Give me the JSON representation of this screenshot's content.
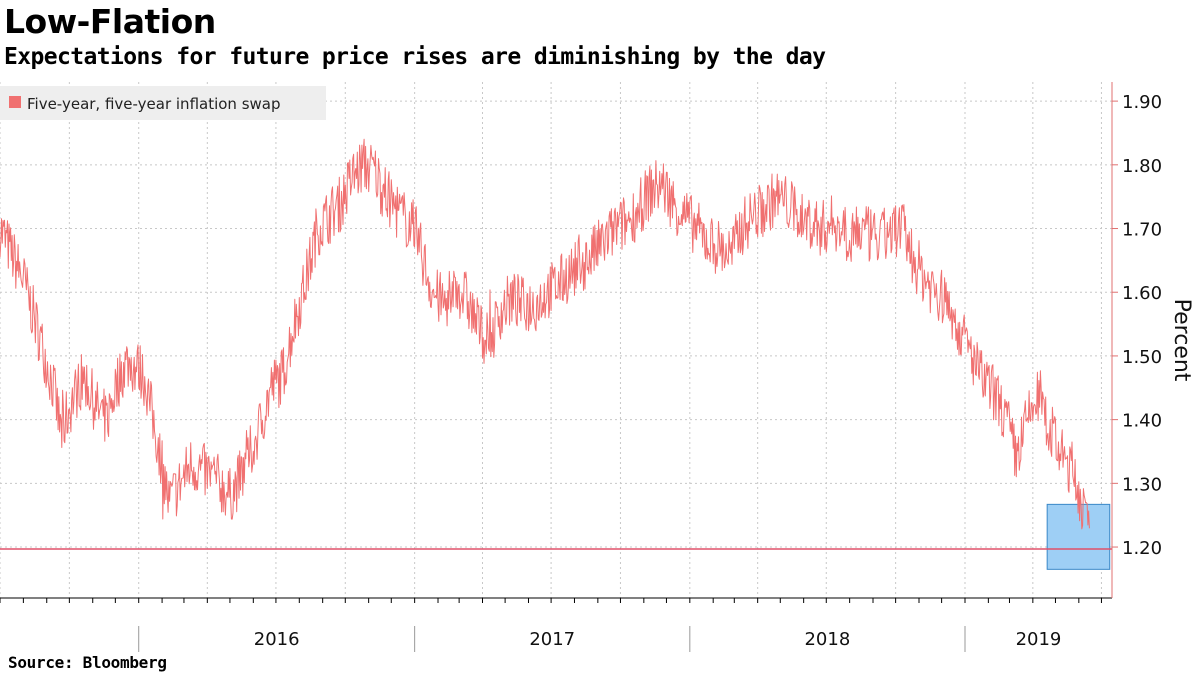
{
  "header": {
    "title": "Low-Flation",
    "subtitle": "Expectations for future price rises are diminishing by the day"
  },
  "footer": {
    "source": "Source: Bloomberg"
  },
  "colors": {
    "series": "#f07070",
    "threshold": "#e0506a",
    "highlight_fill": "#9ecff5",
    "highlight_stroke": "#3a88c8",
    "grid": "#c8c8c8",
    "axis": "#e07070"
  },
  "chart_data": {
    "type": "line",
    "title": "Low-Flation",
    "subtitle": "Expectations for future price rises are diminishing by the day",
    "ylabel": "Percent",
    "y_axis_side": "right",
    "ylim": [
      1.12,
      1.93
    ],
    "yticks": [
      "1.90",
      "1.80",
      "1.70",
      "1.60",
      "1.50",
      "1.40",
      "1.30",
      "1.20"
    ],
    "xlim": [
      "2015-07-01",
      "2019-07-15"
    ],
    "year_labels": [
      "2016",
      "2017",
      "2018",
      "2019"
    ],
    "grid": true,
    "legend": {
      "position": "top-left",
      "entries": [
        "Five-year, five-year inflation swap"
      ]
    },
    "series": [
      {
        "name": "Five-year, five-year inflation swap",
        "x": [
          "2015-07-01",
          "2015-08-01",
          "2015-08-25",
          "2015-09-10",
          "2015-09-20",
          "2015-10-05",
          "2015-10-20",
          "2015-11-05",
          "2015-11-20",
          "2015-12-01",
          "2015-12-15",
          "2016-01-01",
          "2016-01-10",
          "2016-01-20",
          "2016-02-01",
          "2016-02-10",
          "2016-02-25",
          "2016-03-10",
          "2016-03-25",
          "2016-04-10",
          "2016-05-01",
          "2016-05-20",
          "2016-06-10",
          "2016-06-25",
          "2016-07-10",
          "2016-07-25",
          "2016-08-10",
          "2016-08-25",
          "2016-09-10",
          "2016-09-25",
          "2016-10-10",
          "2016-10-25",
          "2016-11-09",
          "2016-11-20",
          "2016-12-01",
          "2016-12-15",
          "2017-01-01",
          "2017-01-15",
          "2017-01-25",
          "2017-02-10",
          "2017-02-25",
          "2017-03-10",
          "2017-03-25",
          "2017-04-10",
          "2017-04-25",
          "2017-05-10",
          "2017-05-25",
          "2017-06-10",
          "2017-06-25",
          "2017-07-10",
          "2017-07-25",
          "2017-08-10",
          "2017-08-25",
          "2017-09-10",
          "2017-09-25",
          "2017-10-10",
          "2017-10-25",
          "2017-11-10",
          "2017-11-25",
          "2017-12-10",
          "2017-12-25",
          "2018-01-10",
          "2018-01-25",
          "2018-02-10",
          "2018-02-25",
          "2018-03-10",
          "2018-03-25",
          "2018-04-10",
          "2018-04-25",
          "2018-05-10",
          "2018-05-25",
          "2018-06-10",
          "2018-06-25",
          "2018-07-10",
          "2018-07-25",
          "2018-08-10",
          "2018-08-25",
          "2018-09-10",
          "2018-09-25",
          "2018-10-10",
          "2018-10-25",
          "2018-11-10",
          "2018-11-25",
          "2018-12-10",
          "2018-12-25",
          "2019-01-10",
          "2019-01-25",
          "2019-02-10",
          "2019-02-25",
          "2019-03-10",
          "2019-03-25",
          "2019-04-10",
          "2019-04-25",
          "2019-05-10",
          "2019-05-25",
          "2019-06-05",
          "2019-06-15"
        ],
        "values": [
          1.7,
          1.62,
          1.52,
          1.45,
          1.38,
          1.43,
          1.47,
          1.42,
          1.4,
          1.45,
          1.49,
          1.48,
          1.46,
          1.4,
          1.33,
          1.27,
          1.3,
          1.33,
          1.32,
          1.31,
          1.28,
          1.32,
          1.39,
          1.45,
          1.47,
          1.55,
          1.62,
          1.7,
          1.72,
          1.74,
          1.78,
          1.8,
          1.79,
          1.76,
          1.74,
          1.72,
          1.7,
          1.64,
          1.6,
          1.58,
          1.61,
          1.59,
          1.55,
          1.52,
          1.57,
          1.59,
          1.58,
          1.58,
          1.6,
          1.61,
          1.63,
          1.64,
          1.66,
          1.68,
          1.7,
          1.71,
          1.73,
          1.76,
          1.77,
          1.74,
          1.72,
          1.7,
          1.68,
          1.67,
          1.66,
          1.7,
          1.72,
          1.73,
          1.75,
          1.74,
          1.72,
          1.71,
          1.7,
          1.71,
          1.7,
          1.7,
          1.69,
          1.68,
          1.7,
          1.7,
          1.65,
          1.62,
          1.6,
          1.58,
          1.54,
          1.5,
          1.46,
          1.44,
          1.4,
          1.34,
          1.4,
          1.44,
          1.38,
          1.34,
          1.32,
          1.27,
          1.21
        ]
      }
    ],
    "reference_line": {
      "value": 1.197,
      "orientation": "horizontal"
    },
    "highlight_box": {
      "x_start": "2019-04-20",
      "x_end": "2019-07-12",
      "y_min": 1.165,
      "y_max": 1.267
    }
  }
}
